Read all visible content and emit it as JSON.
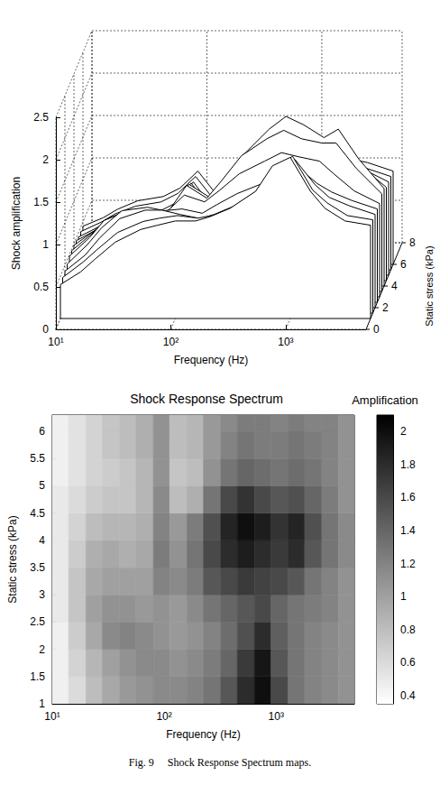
{
  "chart_data": [
    {
      "type": "waterfall",
      "xlabel": "Frequency (Hz)",
      "ylabel": "Shock amplification",
      "zlabel": "Static stress (kPa)",
      "log": "x",
      "grid": true,
      "color": "#000000",
      "xlim": [
        10,
        5000
      ],
      "xticks": [
        {
          "value": 10,
          "label": "10¹"
        },
        {
          "value": 100,
          "label": "10²"
        },
        {
          "value": 1000,
          "label": "10³"
        }
      ],
      "ylim": [
        0,
        2.5
      ],
      "yticks": [
        0,
        0.5,
        1,
        1.5,
        2,
        2.5
      ],
      "zlim": [
        0,
        8
      ],
      "zticks": [
        0,
        2,
        4,
        6,
        8
      ],
      "x": [
        10,
        15,
        20,
        30,
        50,
        70,
        100,
        150,
        200,
        300,
        500,
        700,
        1000,
        1500,
        2000,
        3000,
        5000
      ],
      "series": [
        {
          "z": 1,
          "values": [
            0.4,
            0.55,
            0.7,
            0.9,
            1.05,
            1.1,
            1.15,
            1.15,
            1.2,
            1.3,
            1.5,
            1.8,
            1.9,
            1.5,
            1.3,
            1.15,
            1.1
          ]
        },
        {
          "z": 1.5,
          "values": [
            0.42,
            0.6,
            0.75,
            0.95,
            1.08,
            1.12,
            1.15,
            1.12,
            1.15,
            1.25,
            1.45,
            1.7,
            1.85,
            1.45,
            1.3,
            1.15,
            1.1
          ]
        },
        {
          "z": 2,
          "values": [
            0.43,
            0.62,
            0.82,
            1.05,
            1.15,
            1.15,
            1.1,
            1.05,
            1.1,
            1.2,
            1.35,
            1.55,
            1.75,
            1.45,
            1.3,
            1.2,
            1.1
          ]
        },
        {
          "z": 2.5,
          "values": [
            0.45,
            0.68,
            0.88,
            1.08,
            1.12,
            1.08,
            1.1,
            1.05,
            1.15,
            1.28,
            1.4,
            1.5,
            1.6,
            1.4,
            1.3,
            1.2,
            1.1
          ]
        },
        {
          "z": 3,
          "values": [
            0.48,
            0.7,
            0.9,
            1.0,
            1.0,
            1.0,
            1.2,
            1.12,
            1.25,
            1.45,
            1.6,
            1.7,
            1.65,
            1.6,
            1.45,
            1.25,
            1.1
          ]
        },
        {
          "z": 3.5,
          "values": [
            0.48,
            0.68,
            0.85,
            0.95,
            0.92,
            0.95,
            1.25,
            1.1,
            1.3,
            1.6,
            1.8,
            1.9,
            1.8,
            1.75,
            1.75,
            1.45,
            1.15
          ]
        },
        {
          "z": 4,
          "values": [
            0.48,
            0.65,
            0.8,
            0.88,
            0.85,
            0.9,
            1.2,
            1.05,
            1.25,
            1.55,
            1.85,
            2.0,
            1.9,
            1.75,
            1.85,
            1.5,
            1.15
          ]
        },
        {
          "z": 4.5,
          "values": [
            0.47,
            0.6,
            0.72,
            0.78,
            0.78,
            0.85,
            1.15,
            0.85,
            0.95,
            1.3,
            1.6,
            1.75,
            1.6,
            1.5,
            1.55,
            1.35,
            1.1
          ]
        },
        {
          "z": 5,
          "values": [
            0.45,
            0.57,
            0.67,
            0.72,
            0.75,
            0.85,
            1.1,
            0.78,
            0.82,
            1.1,
            1.3,
            1.4,
            1.35,
            1.3,
            1.35,
            1.25,
            1.1
          ]
        },
        {
          "z": 5.5,
          "values": [
            0.45,
            0.56,
            0.66,
            0.75,
            0.8,
            0.9,
            1.1,
            0.8,
            0.85,
            1.05,
            1.2,
            1.3,
            1.25,
            1.25,
            1.3,
            1.2,
            1.1
          ]
        },
        {
          "z": 6,
          "values": [
            0.45,
            0.55,
            0.65,
            0.75,
            0.8,
            0.9,
            1.1,
            0.8,
            0.85,
            1.05,
            1.15,
            1.25,
            1.25,
            1.2,
            1.25,
            1.2,
            1.1
          ]
        }
      ]
    },
    {
      "type": "heatmap",
      "title": "Shock Response Spectrum",
      "xlabel": "Frequency (Hz)",
      "ylabel": "Static stress (kPa)",
      "log": "x",
      "xlim": [
        10,
        5000
      ],
      "xticks": [
        {
          "value": 10,
          "label": "10¹"
        },
        {
          "value": 100,
          "label": "10²"
        },
        {
          "value": 1000,
          "label": "10³"
        }
      ],
      "ylim": [
        1,
        6.3
      ],
      "yticks": [
        1,
        1.5,
        2,
        2.5,
        3,
        3.5,
        4,
        4.5,
        5,
        5.5,
        6
      ],
      "x_bins": [
        10,
        14,
        20,
        28,
        40,
        56,
        80,
        112,
        160,
        224,
        320,
        450,
        640,
        900,
        1280,
        1800,
        2560,
        3600,
        5000
      ],
      "y_bins": [
        1,
        1.5,
        2,
        2.5,
        3,
        3.5,
        4,
        4.5,
        5,
        5.5,
        6,
        6.3
      ],
      "values": [
        [
          0.45,
          0.6,
          0.8,
          0.95,
          1.05,
          1.1,
          1.15,
          1.15,
          1.2,
          1.3,
          1.5,
          1.8,
          2.0,
          1.6,
          1.3,
          1.2,
          1.15,
          1.1
        ],
        [
          0.45,
          0.65,
          0.85,
          1.0,
          1.1,
          1.15,
          1.15,
          1.1,
          1.15,
          1.25,
          1.4,
          1.7,
          1.95,
          1.5,
          1.3,
          1.2,
          1.15,
          1.1
        ],
        [
          0.45,
          0.7,
          0.95,
          1.15,
          1.2,
          1.15,
          1.1,
          1.05,
          1.1,
          1.2,
          1.35,
          1.55,
          1.8,
          1.45,
          1.3,
          1.2,
          1.15,
          1.1
        ],
        [
          0.5,
          0.75,
          1.0,
          1.1,
          1.1,
          1.05,
          1.1,
          1.05,
          1.15,
          1.3,
          1.4,
          1.5,
          1.6,
          1.4,
          1.3,
          1.25,
          1.2,
          1.1
        ],
        [
          0.5,
          0.75,
          0.95,
          1.0,
          1.0,
          1.0,
          1.2,
          1.15,
          1.25,
          1.5,
          1.6,
          1.7,
          1.65,
          1.6,
          1.5,
          1.3,
          1.2,
          1.1
        ],
        [
          0.5,
          0.7,
          0.9,
          0.95,
          0.9,
          0.95,
          1.25,
          1.1,
          1.3,
          1.6,
          1.8,
          1.9,
          1.8,
          1.7,
          1.8,
          1.5,
          1.3,
          1.15
        ],
        [
          0.5,
          0.65,
          0.8,
          0.85,
          0.85,
          0.9,
          1.2,
          1.05,
          1.25,
          1.55,
          1.85,
          2.0,
          1.9,
          1.75,
          1.85,
          1.55,
          1.3,
          1.15
        ],
        [
          0.5,
          0.6,
          0.7,
          0.75,
          0.75,
          0.85,
          1.15,
          0.8,
          0.9,
          1.3,
          1.6,
          1.75,
          1.6,
          1.5,
          1.55,
          1.4,
          1.25,
          1.1
        ],
        [
          0.45,
          0.55,
          0.65,
          0.7,
          0.75,
          0.85,
          1.1,
          0.75,
          0.8,
          1.1,
          1.3,
          1.4,
          1.35,
          1.3,
          1.35,
          1.3,
          1.2,
          1.1
        ],
        [
          0.45,
          0.55,
          0.65,
          0.75,
          0.8,
          0.9,
          1.1,
          0.8,
          0.85,
          1.05,
          1.2,
          1.3,
          1.25,
          1.25,
          1.3,
          1.25,
          1.2,
          1.1
        ],
        [
          0.45,
          0.55,
          0.65,
          0.75,
          0.8,
          0.9,
          1.1,
          0.8,
          0.85,
          1.05,
          1.15,
          1.25,
          1.25,
          1.2,
          1.25,
          1.2,
          1.2,
          1.1
        ]
      ],
      "colorbar": {
        "label": "Amplification",
        "range": [
          0.35,
          2.1
        ],
        "ticks": [
          0.4,
          0.6,
          0.8,
          1,
          1.2,
          1.4,
          1.6,
          1.8,
          2
        ],
        "colors": [
          "#ffffff",
          "#000000"
        ]
      }
    }
  ],
  "caption": "Fig. 9     Shock Response Spectrum maps."
}
